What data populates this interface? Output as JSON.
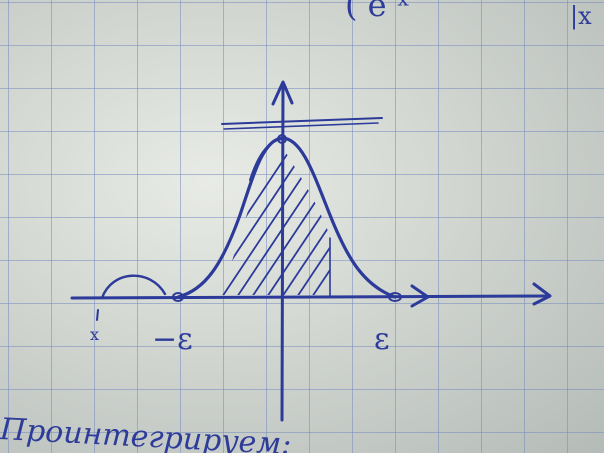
{
  "labels": {
    "x_label": "x",
    "minus_epsilon": "−ε",
    "epsilon": "ε",
    "top_fragment": "( e  ˣ",
    "top_right_fragment": "|x",
    "bottom_text": "Проинтегрируем:"
  },
  "colors": {
    "ink": "#2c3a9a",
    "paper": "#d3d7d2",
    "grid": "#7f8cbe"
  }
}
